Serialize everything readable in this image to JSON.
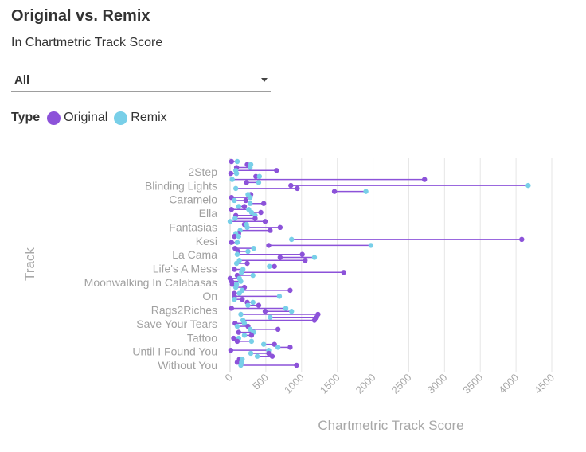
{
  "header": {
    "title": "Original vs. Remix",
    "subtitle": "In Chartmetric Track Score"
  },
  "filter": {
    "selected": "All"
  },
  "legend": {
    "title": "Type",
    "items": [
      {
        "label": "Original",
        "color": "#8c52d9"
      },
      {
        "label": "Remix",
        "color": "#78cfe8"
      }
    ]
  },
  "chart_data": {
    "type": "dumbbell",
    "xlabel": "Chartmetric Track Score",
    "ylabel": "Track",
    "xlim": [
      0,
      4500
    ],
    "xticks": [
      0,
      500,
      1000,
      1500,
      2000,
      2500,
      3000,
      3500,
      4000,
      4500
    ],
    "orientation": "horizontal",
    "grid": "vertical",
    "legend_position": "top-left",
    "colors": {
      "original": "#8c52d9",
      "remix": "#78cfe8",
      "connector": "#8c52d9"
    },
    "y_tick_labels": [
      "2Step",
      "Blinding Lights",
      "Caramelo",
      "Ella",
      "Fantasias",
      "Kesi",
      "La Cama",
      "Life's A Mess",
      "Moonwalking In Calabasas",
      "On",
      "Rags2Riches",
      "Save Your Tears",
      "Tattoo",
      "Until I Found You",
      "Without You"
    ],
    "pairs": [
      {
        "original": 20,
        "remix": 100
      },
      {
        "original": 240,
        "remix": 290
      },
      {
        "original": 90,
        "remix": 280
      },
      {
        "original": 650,
        "remix": 80
      },
      {
        "original": 10,
        "remix": 90
      },
      {
        "original": 360,
        "remix": 410
      },
      {
        "original": 2720,
        "remix": 30
      },
      {
        "original": 230,
        "remix": 400
      },
      {
        "original": 850,
        "remix": 4170
      },
      {
        "original": 940,
        "remix": 80
      },
      {
        "original": 1460,
        "remix": 1900
      },
      {
        "original": 290,
        "remix": 250
      },
      {
        "original": 20,
        "remix": 280
      },
      {
        "original": 220,
        "remix": 60
      },
      {
        "original": 470,
        "remix": 280
      },
      {
        "original": 200,
        "remix": 120
      },
      {
        "original": 20,
        "remix": 260
      },
      {
        "original": 430,
        "remix": 300
      },
      {
        "original": 80,
        "remix": 350
      },
      {
        "original": 350,
        "remix": 70
      },
      {
        "original": 490,
        "remix": 0
      },
      {
        "original": 200,
        "remix": 230
      },
      {
        "original": 700,
        "remix": 240
      },
      {
        "original": 560,
        "remix": 140
      },
      {
        "original": 120,
        "remix": 80
      },
      {
        "original": 60,
        "remix": 120
      },
      {
        "original": 4080,
        "remix": 860
      },
      {
        "original": 20,
        "remix": 100
      },
      {
        "original": 540,
        "remix": 1970
      },
      {
        "original": 70,
        "remix": 330
      },
      {
        "original": 110,
        "remix": 250
      },
      {
        "original": 1010,
        "remix": 100
      },
      {
        "original": 700,
        "remix": 1180
      },
      {
        "original": 1050,
        "remix": 130
      },
      {
        "original": 240,
        "remix": 90
      },
      {
        "original": 620,
        "remix": 550
      },
      {
        "original": 60,
        "remix": 180
      },
      {
        "original": 1590,
        "remix": 160
      },
      {
        "original": 100,
        "remix": 320
      },
      {
        "original": 0,
        "remix": 130
      },
      {
        "original": 20,
        "remix": 150
      },
      {
        "original": 30,
        "remix": 90
      },
      {
        "original": 200,
        "remix": 80
      },
      {
        "original": 840,
        "remix": 170
      },
      {
        "original": 60,
        "remix": 130
      },
      {
        "original": 60,
        "remix": 690
      },
      {
        "original": 170,
        "remix": 60
      },
      {
        "original": 240,
        "remix": 320
      },
      {
        "original": 400,
        "remix": 250
      },
      {
        "original": 20,
        "remix": 780
      },
      {
        "original": 490,
        "remix": 860
      },
      {
        "original": 1230,
        "remix": 150
      },
      {
        "original": 1210,
        "remix": 560
      },
      {
        "original": 1180,
        "remix": 180
      },
      {
        "original": 70,
        "remix": 200
      },
      {
        "original": 250,
        "remix": 100
      },
      {
        "original": 670,
        "remix": 280
      },
      {
        "original": 120,
        "remix": 330
      },
      {
        "original": 300,
        "remix": 200
      },
      {
        "original": 50,
        "remix": 120
      },
      {
        "original": 100,
        "remix": 300
      },
      {
        "original": 620,
        "remix": 470
      },
      {
        "original": 840,
        "remix": 670
      },
      {
        "original": 10,
        "remix": 540
      },
      {
        "original": 540,
        "remix": 290
      },
      {
        "original": 590,
        "remix": 380
      },
      {
        "original": 130,
        "remix": 170
      },
      {
        "original": 100,
        "remix": 160
      },
      {
        "original": 930,
        "remix": 150
      }
    ]
  }
}
